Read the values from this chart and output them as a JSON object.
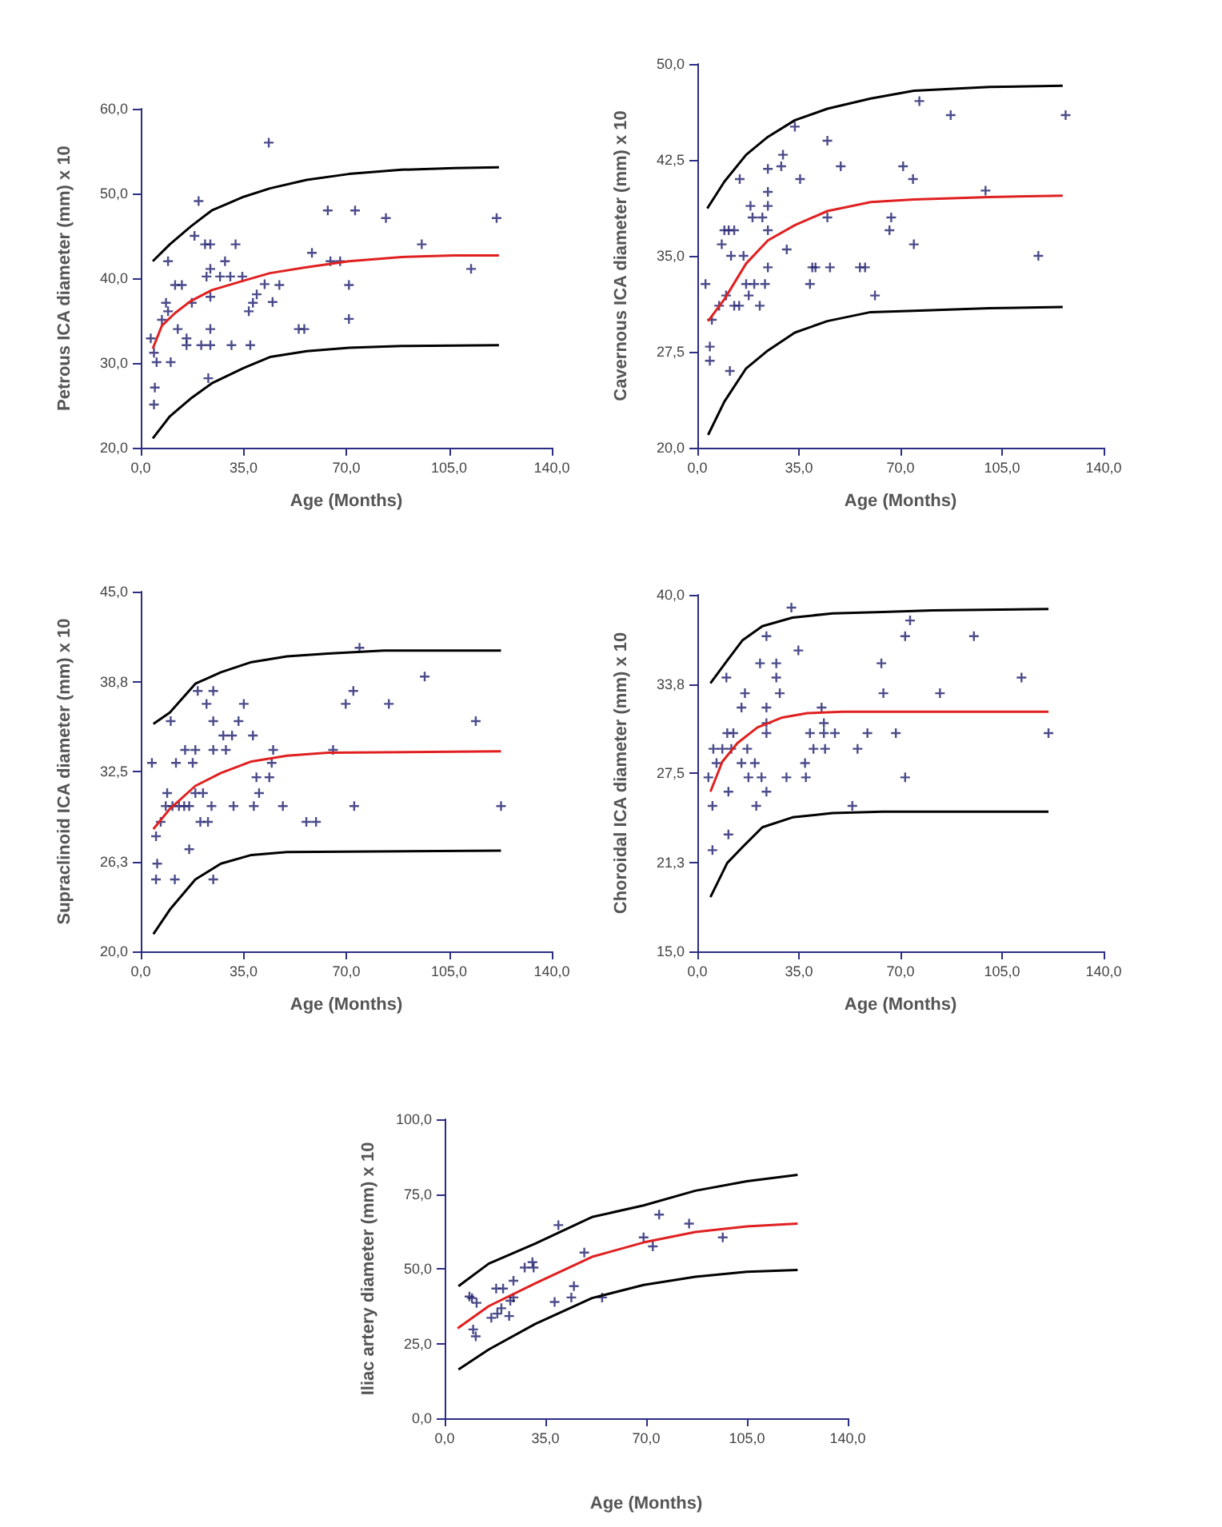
{
  "chart_data": [
    {
      "type": "scatter",
      "xlabel": "Age (Months)",
      "ylabel": "Petrous ICA diameter (mm) x 10",
      "xlim": [
        0,
        140
      ],
      "ylim": [
        20,
        60
      ],
      "xticks": [
        {
          "value": 0,
          "label": "0,0"
        },
        {
          "value": 35,
          "label": "35,0"
        },
        {
          "value": 70,
          "label": "70,0"
        },
        {
          "value": 105,
          "label": "105,0"
        },
        {
          "value": 140,
          "label": "140,0"
        }
      ],
      "yticks": [
        {
          "value": 20,
          "label": "20,0"
        },
        {
          "value": 30,
          "label": "30,0"
        },
        {
          "value": 40,
          "label": "40,0"
        },
        {
          "value": 50,
          "label": "50,0"
        },
        {
          "value": 60,
          "label": "60,0"
        }
      ],
      "series": [
        {
          "marker": "cross",
          "color": "#1f1f6e",
          "x": [
            3.4,
            4.5,
            4.8,
            4.5,
            5.4,
            7.2,
            8.6,
            9.3,
            9.3,
            10.2,
            11.7,
            14.0,
            12.6,
            15.6,
            15.6,
            17.4,
            18.3,
            19.7,
            20.6,
            21.9,
            22.4,
            23.0,
            23.7,
            23.7,
            23.7,
            23.7,
            23.7,
            27.0,
            28.7,
            30.5,
            30.9,
            32.3,
            34.6,
            36.8,
            37.3,
            38.2,
            39.5,
            42.2,
            43.6,
            44.9,
            47.2,
            53.8,
            55.7,
            58.3,
            63.7,
            64.6,
            67.9,
            70.9,
            70.9,
            73.0,
            83.5,
            95.7,
            112.5,
            121.2
          ],
          "values": [
            32.9,
            31.2,
            27.1,
            25.1,
            30.1,
            35.1,
            37.1,
            36.1,
            42.0,
            30.1,
            39.2,
            39.2,
            34.0,
            32.9,
            32.1,
            37.1,
            45.0,
            49.1,
            32.1,
            44.0,
            40.2,
            28.2,
            44.0,
            41.1,
            37.8,
            34.0,
            32.1,
            40.2,
            42.0,
            40.2,
            32.1,
            44.0,
            40.2,
            36.1,
            32.1,
            37.1,
            38.1,
            39.3,
            56.0,
            37.2,
            39.2,
            34.0,
            34.0,
            43.0,
            48.0,
            42.0,
            42.0,
            39.2,
            35.2,
            48.0,
            47.1,
            44.0,
            41.1,
            47.1
          ]
        },
        {
          "type": "line",
          "color": "#000000",
          "x": [
            4.1,
            9.9,
            17,
            24.2,
            35,
            44,
            56.5,
            70.9,
            88.9,
            106.8,
            122
          ],
          "values": [
            42.0,
            44.0,
            46.1,
            48.0,
            49.6,
            50.6,
            51.6,
            52.3,
            52.8,
            53.0,
            53.1
          ]
        },
        {
          "type": "line",
          "color": "#e02020",
          "x": [
            4.1,
            7.2,
            11.7,
            17,
            24.2,
            35,
            44,
            56.5,
            70.9,
            88.9,
            106.8,
            122
          ],
          "values": [
            31.7,
            34.4,
            35.9,
            37.3,
            38.6,
            39.7,
            40.6,
            41.3,
            42.0,
            42.5,
            42.7,
            42.7
          ]
        },
        {
          "type": "line",
          "color": "#000000",
          "x": [
            4.1,
            9.9,
            17,
            24.2,
            35,
            44,
            56.5,
            70.9,
            88.9,
            122
          ],
          "values": [
            21.1,
            23.7,
            25.8,
            27.6,
            29.4,
            30.7,
            31.4,
            31.8,
            32.0,
            32.1
          ]
        }
      ]
    },
    {
      "type": "scatter",
      "xlabel": "Age (Months)",
      "ylabel": "Cavernous ICA diameter (mm) x 10",
      "xlim": [
        0,
        140
      ],
      "ylim": [
        20,
        50
      ],
      "xticks": [
        {
          "value": 0,
          "label": "0,0"
        },
        {
          "value": 35,
          "label": "35,0"
        },
        {
          "value": 70,
          "label": "70,0"
        },
        {
          "value": 105,
          "label": "105,0"
        },
        {
          "value": 140,
          "label": "140,0"
        }
      ],
      "yticks": [
        {
          "value": 20,
          "label": "20,0"
        },
        {
          "value": 27.5,
          "label": "27,5"
        },
        {
          "value": 35,
          "label": "35,0"
        },
        {
          "value": 42.5,
          "label": "42,5"
        },
        {
          "value": 50,
          "label": "50,0"
        }
      ],
      "series": [
        {
          "marker": "cross",
          "color": "#1f1f6e",
          "x": [
            2.8,
            4.3,
            4.3,
            5.0,
            7.5,
            8.4,
            9.3,
            9.9,
            10.8,
            11.2,
            11.6,
            12.7,
            12.7,
            14.4,
            14.6,
            15.9,
            16.8,
            17.7,
            18.3,
            19.0,
            19.6,
            21.5,
            22.4,
            23.3,
            24.3,
            24.3,
            24.3,
            24.3,
            24.3,
            28.9,
            29.5,
            30.8,
            33.6,
            35.4,
            38.8,
            39.6,
            40.7,
            44.8,
            44.8,
            45.7,
            49.4,
            56.0,
            57.8,
            61.2,
            66.2,
            66.8,
            70.9,
            74.3,
            74.6,
            76.5,
            87.3,
            99.3,
            117.5,
            126.9
          ],
          "values": [
            32.8,
            27.9,
            26.8,
            30.0,
            31.1,
            35.9,
            37.0,
            31.9,
            37.0,
            26.0,
            35.0,
            37.0,
            31.1,
            31.1,
            41.0,
            35.0,
            32.8,
            31.9,
            38.9,
            38.0,
            32.8,
            31.1,
            38.0,
            32.8,
            41.8,
            40.0,
            38.9,
            37.0,
            34.1,
            42.0,
            42.9,
            35.5,
            45.1,
            41.0,
            32.8,
            34.1,
            34.1,
            44.0,
            38.0,
            34.1,
            42.0,
            34.1,
            34.1,
            31.9,
            37.0,
            38.0,
            42.0,
            41.0,
            35.9,
            47.1,
            46.0,
            40.1,
            35.0,
            46.0
          ]
        },
        {
          "type": "line",
          "color": "#000000",
          "x": [
            3.4,
            9.3,
            16.8,
            24.3,
            33.6,
            44.8,
            59.7,
            74.6,
            100.7,
            125.9
          ],
          "values": [
            38.7,
            40.8,
            42.9,
            44.3,
            45.6,
            46.5,
            47.3,
            47.9,
            48.2,
            48.3
          ]
        },
        {
          "type": "line",
          "color": "#e02020",
          "x": [
            3.7,
            9.3,
            16.8,
            24.3,
            33.6,
            44.8,
            59.7,
            74.6,
            100.7,
            125.9
          ],
          "values": [
            29.9,
            31.6,
            34.4,
            36.2,
            37.4,
            38.5,
            39.2,
            39.4,
            39.6,
            39.7
          ]
        },
        {
          "type": "line",
          "color": "#000000",
          "x": [
            3.7,
            9.3,
            16.8,
            24.3,
            33.6,
            44.8,
            59.7,
            74.6,
            100.7,
            125.9
          ],
          "values": [
            21.0,
            23.6,
            26.2,
            27.6,
            29.0,
            29.9,
            30.6,
            30.7,
            30.9,
            31.0
          ]
        }
      ]
    },
    {
      "type": "scatter",
      "xlabel": "Age (Months)",
      "ylabel": "Supraclinoid ICA diameter (mm) x 10",
      "xlim": [
        0,
        140
      ],
      "ylim": [
        20,
        45
      ],
      "xticks": [
        {
          "value": 0,
          "label": "0,0"
        },
        {
          "value": 35,
          "label": "35,0"
        },
        {
          "value": 70,
          "label": "70,0"
        },
        {
          "value": 105,
          "label": "105,0"
        },
        {
          "value": 140,
          "label": "140,0"
        }
      ],
      "yticks": [
        {
          "value": 20,
          "label": "20,0"
        },
        {
          "value": 26.25,
          "label": "26,3"
        },
        {
          "value": 32.5,
          "label": "32,5"
        },
        {
          "value": 38.75,
          "label": "38,8"
        },
        {
          "value": 45,
          "label": "45,0"
        }
      ],
      "series": [
        {
          "marker": "cross",
          "color": "#1f1f6e",
          "x": [
            3.8,
            5.2,
            5.6,
            5.2,
            6.8,
            8.5,
            9.0,
            10.2,
            10.8,
            11.6,
            12.0,
            13.0,
            14.8,
            15.1,
            16.5,
            16.5,
            17.7,
            18.6,
            18.6,
            19.4,
            20.3,
            21.2,
            22.4,
            22.9,
            24.1,
            24.7,
            24.7,
            24.7,
            24.7,
            28.1,
            29.0,
            31.1,
            31.6,
            33.3,
            35.1,
            38.2,
            38.5,
            39.4,
            40.3,
            43.8,
            44.6,
            45.1,
            48.4,
            56.4,
            59.7,
            65.5,
            69.8,
            72.4,
            72.7,
            74.5,
            84.5,
            96.7,
            114.1,
            122.7
          ],
          "values": [
            33.1,
            28.0,
            26.1,
            25.0,
            29.0,
            30.1,
            31.0,
            36.0,
            30.1,
            25.0,
            33.1,
            30.1,
            30.1,
            34.0,
            30.1,
            27.1,
            33.1,
            34.0,
            31.0,
            38.1,
            29.0,
            31.0,
            37.2,
            29.0,
            30.1,
            38.1,
            36.0,
            34.0,
            25.0,
            35.0,
            34.0,
            35.0,
            30.1,
            36.0,
            37.2,
            35.0,
            30.1,
            32.1,
            31.0,
            32.1,
            33.1,
            34.0,
            30.1,
            29.0,
            29.0,
            34.0,
            37.2,
            38.1,
            30.1,
            41.1,
            37.2,
            39.1,
            36.0,
            30.1
          ]
        },
        {
          "type": "line",
          "color": "#000000",
          "x": [
            4.3,
            9.9,
            18.6,
            27.3,
            37.7,
            49.8,
            63.7,
            82.8,
            122.7
          ],
          "values": [
            35.8,
            36.6,
            38.6,
            39.4,
            40.1,
            40.5,
            40.7,
            40.9,
            40.9
          ]
        },
        {
          "type": "line",
          "color": "#e02020",
          "x": [
            4.3,
            9.9,
            18.6,
            27.3,
            37.7,
            49.8,
            63.7,
            122.7
          ],
          "values": [
            28.5,
            29.9,
            31.5,
            32.4,
            33.2,
            33.6,
            33.8,
            33.9
          ]
        },
        {
          "type": "line",
          "color": "#000000",
          "x": [
            4.3,
            9.9,
            18.6,
            27.3,
            37.7,
            49.8,
            122.7
          ],
          "values": [
            21.2,
            22.9,
            25.0,
            26.1,
            26.7,
            26.9,
            27.0
          ]
        }
      ]
    },
    {
      "type": "scatter",
      "xlabel": "Age (Months)",
      "ylabel": "Choroidal ICA diameter (mm) x 10",
      "xlim": [
        0,
        140
      ],
      "ylim": [
        15,
        40
      ],
      "xticks": [
        {
          "value": 0,
          "label": "0,0"
        },
        {
          "value": 35,
          "label": "35,0"
        },
        {
          "value": 70,
          "label": "70,0"
        },
        {
          "value": 105,
          "label": "105,0"
        },
        {
          "value": 140,
          "label": "140,0"
        }
      ],
      "yticks": [
        {
          "value": 15,
          "label": "15,0"
        },
        {
          "value": 21.25,
          "label": "21,3"
        },
        {
          "value": 27.5,
          "label": "27,5"
        },
        {
          "value": 33.75,
          "label": "33,8"
        },
        {
          "value": 40,
          "label": "40,0"
        }
      ],
      "series": [
        {
          "marker": "cross",
          "color": "#1f1f6e",
          "x": [
            3.8,
            5.2,
            5.2,
            5.5,
            6.6,
            8.6,
            10.0,
            10.3,
            10.7,
            10.7,
            11.7,
            12.4,
            15.2,
            15.2,
            16.4,
            17.2,
            17.6,
            19.8,
            20.3,
            21.6,
            22.1,
            23.8,
            23.8,
            23.8,
            23.8,
            23.8,
            27.2,
            27.2,
            28.4,
            30.7,
            32.4,
            34.8,
            37.1,
            37.4,
            38.8,
            40.0,
            42.8,
            43.6,
            43.6,
            44.0,
            47.4,
            53.4,
            55.2,
            58.6,
            63.4,
            64.1,
            68.4,
            71.6,
            71.6,
            73.3,
            83.6,
            95.3,
            111.7,
            121.0
          ],
          "values": [
            27.2,
            25.2,
            22.1,
            29.2,
            28.2,
            29.2,
            34.2,
            30.3,
            26.2,
            23.2,
            29.2,
            30.3,
            32.1,
            28.2,
            33.1,
            29.2,
            27.2,
            28.2,
            25.2,
            35.2,
            27.2,
            37.1,
            32.1,
            31.0,
            30.3,
            26.2,
            35.2,
            34.2,
            33.1,
            27.2,
            39.1,
            36.1,
            28.2,
            27.2,
            30.3,
            29.2,
            32.1,
            31.0,
            30.3,
            29.2,
            30.3,
            25.2,
            29.2,
            30.3,
            35.2,
            33.1,
            30.3,
            37.1,
            27.2,
            38.2,
            33.1,
            37.1,
            34.2,
            30.3
          ]
        },
        {
          "type": "line",
          "color": "#000000",
          "x": [
            4.5,
            10.3,
            15.5,
            22.4,
            32.8,
            46.6,
            63.8,
            81.0,
            121.0
          ],
          "values": [
            33.8,
            35.4,
            36.8,
            37.8,
            38.4,
            38.7,
            38.8,
            38.9,
            39.0
          ]
        },
        {
          "type": "line",
          "color": "#e02020",
          "x": [
            4.5,
            8.6,
            13.8,
            20.7,
            29.3,
            37.9,
            50.0,
            121.0
          ],
          "values": [
            26.2,
            28.3,
            29.6,
            30.7,
            31.4,
            31.7,
            31.8,
            31.8
          ]
        },
        {
          "type": "line",
          "color": "#000000",
          "x": [
            4.5,
            10.3,
            15.5,
            22.4,
            32.8,
            46.6,
            63.8,
            121.0
          ],
          "values": [
            18.8,
            21.2,
            22.3,
            23.7,
            24.4,
            24.7,
            24.8,
            24.8
          ]
        }
      ]
    },
    {
      "type": "scatter",
      "xlabel": "Age (Months)",
      "ylabel": "Iliac artery diameter (mm) x 10",
      "xlim": [
        0,
        140
      ],
      "ylim": [
        0,
        100
      ],
      "xticks": [
        {
          "value": 0,
          "label": "0,0"
        },
        {
          "value": 35,
          "label": "35,0"
        },
        {
          "value": 70,
          "label": "70,0"
        },
        {
          "value": 105,
          "label": "105,0"
        },
        {
          "value": 140,
          "label": "140,0"
        }
      ],
      "yticks": [
        {
          "value": 0,
          "label": "0,0"
        },
        {
          "value": 25,
          "label": "25,0"
        },
        {
          "value": 50,
          "label": "50,0"
        },
        {
          "value": 75,
          "label": "75,0"
        },
        {
          "value": 100,
          "label": "100,0"
        }
      ],
      "series": [
        {
          "marker": "cross",
          "color": "#1f1f6e",
          "x": [
            8.6,
            9.5,
            9.9,
            10.8,
            11.1,
            16.2,
            17.9,
            18.3,
            19.7,
            20.3,
            22.4,
            22.8,
            23.9,
            23.9,
            27.8,
            30.5,
            30.9,
            38.2,
            39.5,
            44.0,
            44.9,
            48.5,
            54.7,
            69.1,
            72.3,
            74.5,
            84.9,
            96.6
          ],
          "values": [
            40.7,
            40.2,
            29.7,
            27.4,
            38.6,
            33.6,
            43.4,
            35.0,
            36.8,
            43.4,
            34.2,
            39.3,
            46.0,
            40.4,
            50.4,
            52.2,
            50.4,
            38.9,
            64.6,
            40.4,
            44.2,
            55.4,
            40.4,
            60.5,
            57.5,
            68.1,
            65.1,
            60.5
          ]
        },
        {
          "type": "line",
          "color": "#000000",
          "x": [
            4.8,
            15.3,
            31.4,
            51.2,
            69.1,
            87.1,
            105,
            122.6
          ],
          "values": [
            44.2,
            51.7,
            58.4,
            67.3,
            71.2,
            76.1,
            79.3,
            81.4
          ]
        },
        {
          "type": "line",
          "color": "#e02020",
          "x": [
            4.5,
            15.3,
            31.4,
            51.2,
            69.1,
            87.1,
            105,
            122.6
          ],
          "values": [
            30.1,
            37.5,
            45.1,
            54.0,
            58.8,
            62.3,
            64.2,
            65.1
          ]
        },
        {
          "type": "line",
          "color": "#000000",
          "x": [
            4.8,
            15.3,
            31.4,
            51.2,
            69.1,
            87.1,
            105,
            122.6
          ],
          "values": [
            16.3,
            23.0,
            31.5,
            40.2,
            44.6,
            47.3,
            49.0,
            49.6
          ]
        }
      ]
    }
  ]
}
